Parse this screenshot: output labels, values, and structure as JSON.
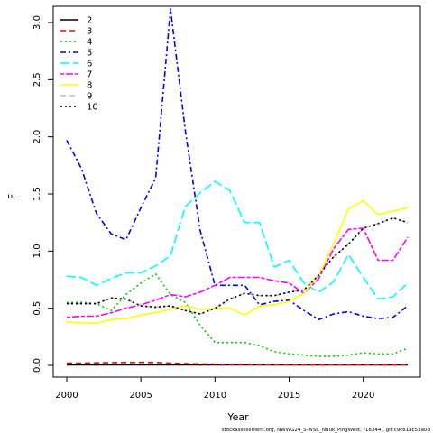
{
  "chart_data": {
    "type": "line",
    "xlabel": "Year",
    "ylabel": "F",
    "xlim": [
      2000,
      2023
    ],
    "ylim": [
      0,
      3.1
    ],
    "xticks": [
      2000,
      2005,
      2010,
      2015,
      2020
    ],
    "yticks": [
      0.0,
      0.5,
      1.0,
      1.5,
      2.0,
      2.5,
      3.0
    ],
    "ytick_labels": [
      "0.0",
      "0.5",
      "1.0",
      "1.5",
      "2.0",
      "2.5",
      "3.0"
    ],
    "x": [
      2000,
      2001,
      2002,
      2003,
      2004,
      2005,
      2006,
      2007,
      2008,
      2009,
      2010,
      2011,
      2012,
      2013,
      2014,
      2015,
      2016,
      2017,
      2018,
      2019,
      2020,
      2021,
      2022,
      2023
    ],
    "legend_position": "top-left",
    "footer": "stockassessment.org, NWWG24_S-WSC_Nuuk_PingWest, r18344 , git:c9c81ac53a0d",
    "series": [
      {
        "name": "2",
        "color": "#000000",
        "dash": "solid",
        "values": [
          0.005,
          0.005,
          0.005,
          0.005,
          0.005,
          0.005,
          0.005,
          0.005,
          0.005,
          0.005,
          0.004,
          0.004,
          0.004,
          0.004,
          0.004,
          0.004,
          0.004,
          0.004,
          0.004,
          0.004,
          0.004,
          0.004,
          0.004,
          0.004
        ]
      },
      {
        "name": "3",
        "color": "#ff0000",
        "dash": "dash",
        "values": [
          0.02,
          0.02,
          0.022,
          0.024,
          0.025,
          0.026,
          0.025,
          0.02,
          0.015,
          0.012,
          0.01,
          0.009,
          0.008,
          0.007,
          0.006,
          0.005,
          0.005,
          0.005,
          0.005,
          0.005,
          0.005,
          0.005,
          0.005,
          0.005
        ]
      },
      {
        "name": "4",
        "color": "#00cd00",
        "dash": "dot",
        "values": [
          0.55,
          0.55,
          0.54,
          0.48,
          0.62,
          0.72,
          0.8,
          0.62,
          0.55,
          0.35,
          0.2,
          0.2,
          0.2,
          0.17,
          0.12,
          0.1,
          0.09,
          0.08,
          0.08,
          0.09,
          0.11,
          0.1,
          0.1,
          0.15
        ]
      },
      {
        "name": "5",
        "color": "#0000ff",
        "dash": "dashdot",
        "values": [
          1.97,
          1.72,
          1.33,
          1.15,
          1.1,
          1.38,
          1.64,
          3.12,
          2.05,
          1.18,
          0.7,
          0.7,
          0.7,
          0.53,
          0.56,
          0.57,
          0.48,
          0.4,
          0.45,
          0.47,
          0.43,
          0.41,
          0.42,
          0.52
        ]
      },
      {
        "name": "6",
        "color": "#00ffff",
        "dash": "longdash",
        "values": [
          0.78,
          0.77,
          0.7,
          0.76,
          0.81,
          0.81,
          0.87,
          0.96,
          1.39,
          1.51,
          1.61,
          1.53,
          1.25,
          1.25,
          0.86,
          0.92,
          0.72,
          0.64,
          0.73,
          0.97,
          0.77,
          0.58,
          0.6,
          0.72
        ]
      },
      {
        "name": "7",
        "color": "#ff00ff",
        "dash": "twodash",
        "values": [
          0.42,
          0.43,
          0.43,
          0.46,
          0.5,
          0.53,
          0.57,
          0.62,
          0.6,
          0.64,
          0.7,
          0.77,
          0.77,
          0.77,
          0.74,
          0.72,
          0.63,
          0.76,
          1.02,
          1.19,
          1.2,
          0.92,
          0.92,
          1.12
        ]
      },
      {
        "name": "8",
        "color": "#ffff00",
        "dash": "solid",
        "values": [
          0.38,
          0.37,
          0.37,
          0.4,
          0.41,
          0.44,
          0.46,
          0.49,
          0.52,
          0.49,
          0.5,
          0.5,
          0.44,
          0.52,
          0.53,
          0.56,
          0.63,
          0.79,
          1.06,
          1.37,
          1.44,
          1.32,
          1.35,
          1.38
        ]
      },
      {
        "name": "9",
        "color": "#bebebe",
        "dash": "dash",
        "values": [
          0.54,
          0.54,
          0.54,
          0.59,
          0.58,
          0.52,
          0.51,
          0.52,
          0.48,
          0.45,
          0.5,
          0.58,
          0.63,
          0.61,
          0.61,
          0.64,
          0.66,
          0.79,
          0.95,
          1.06,
          1.2,
          1.24,
          1.29,
          1.25
        ]
      },
      {
        "name": "10",
        "color": "#000000",
        "dash": "dot",
        "values": [
          0.54,
          0.54,
          0.54,
          0.59,
          0.58,
          0.52,
          0.51,
          0.52,
          0.48,
          0.45,
          0.5,
          0.58,
          0.63,
          0.61,
          0.61,
          0.64,
          0.66,
          0.79,
          0.95,
          1.06,
          1.2,
          1.24,
          1.29,
          1.25
        ]
      }
    ]
  }
}
